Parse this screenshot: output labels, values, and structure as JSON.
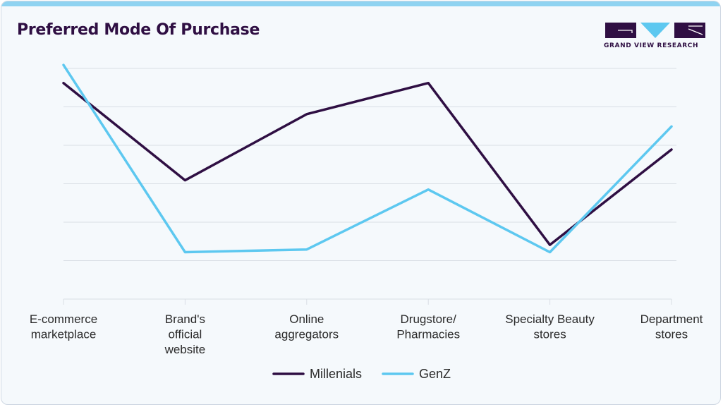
{
  "header": {
    "title": "Preferred Mode Of Purchase",
    "logo_text": "GRAND VIEW RESEARCH"
  },
  "colors": {
    "millenials": "#2f0f43",
    "genz": "#5dc8f0",
    "grid": "#d9dee5",
    "accent_bar": "#8fd3f1"
  },
  "chart_data": {
    "type": "line",
    "title": "Preferred Mode Of Purchase",
    "xlabel": "",
    "ylabel": "",
    "categories": [
      [
        "E-commerce",
        "marketplace"
      ],
      [
        "Brand's",
        "official",
        "website"
      ],
      [
        "Online",
        "aggregators"
      ],
      [
        "Drugstore/",
        "Pharmacies"
      ],
      [
        "Specialty Beauty",
        "stores"
      ],
      [
        "Department",
        "stores"
      ]
    ],
    "ylim": [
      0,
      60
    ],
    "grid": true,
    "legend": "bottom-center",
    "series": [
      {
        "name": "Millenials",
        "color": "#2f0f43",
        "values": [
          56.2,
          30.9,
          48.1,
          56.2,
          14.1,
          38.9
        ]
      },
      {
        "name": "GenZ",
        "color": "#5dc8f0",
        "values": [
          60.9,
          12.2,
          12.9,
          28.5,
          12.2,
          44.9
        ]
      }
    ]
  }
}
